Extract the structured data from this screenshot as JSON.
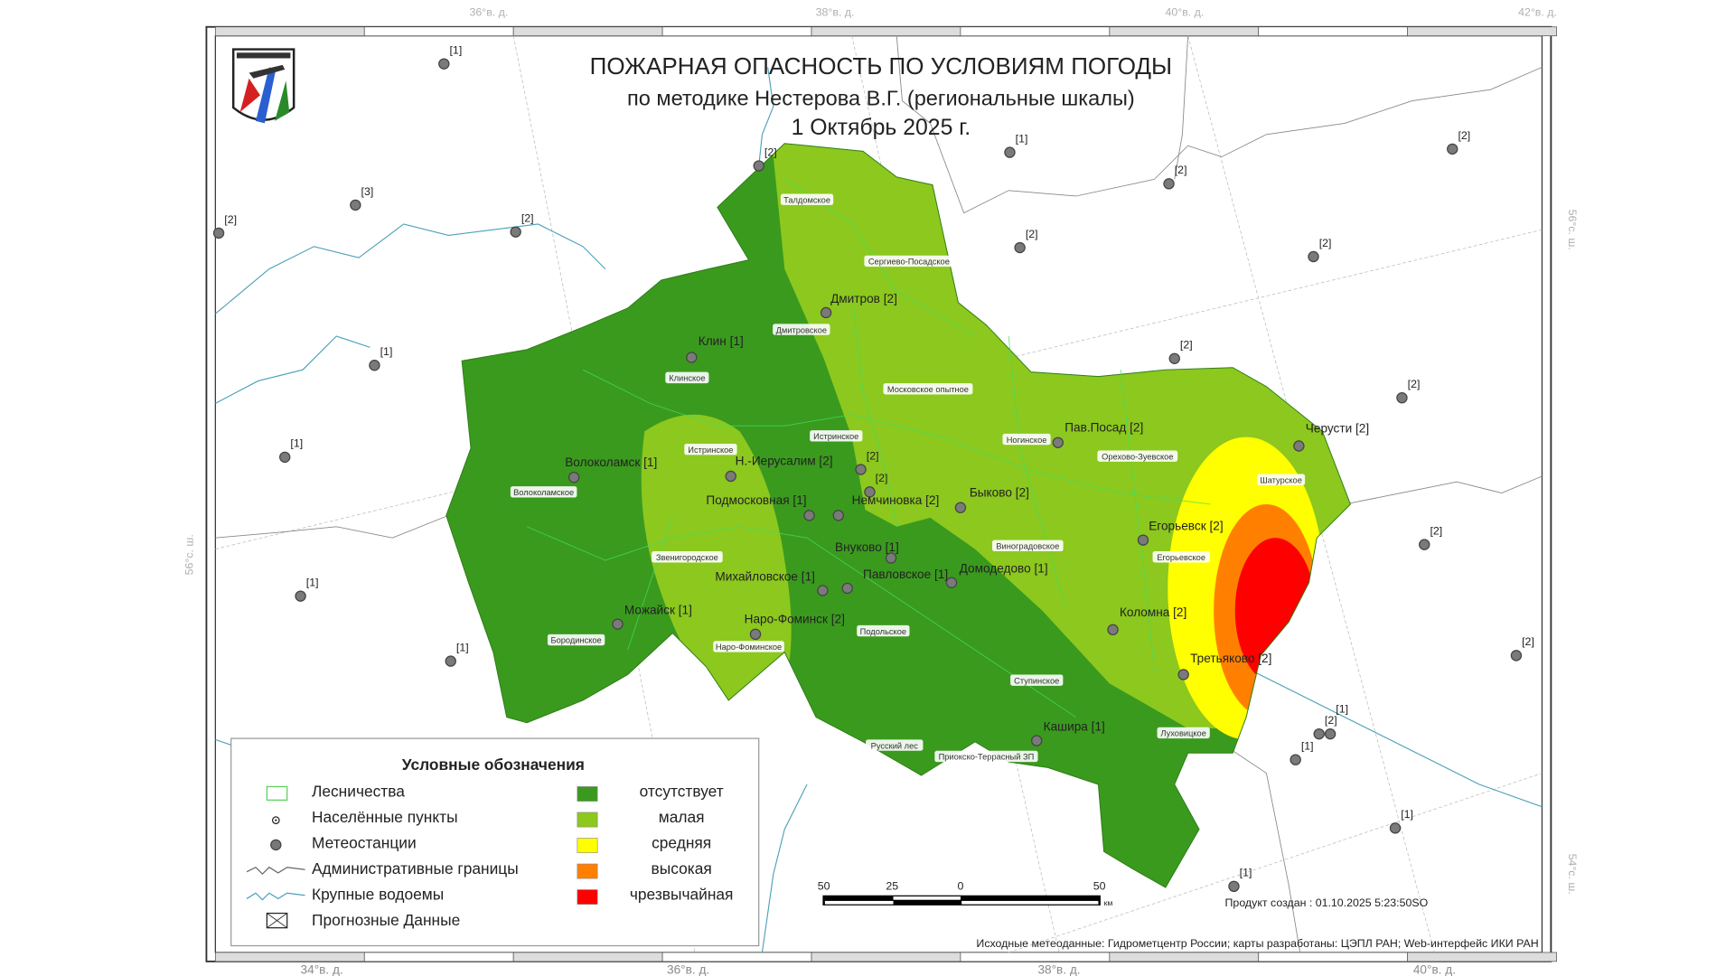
{
  "header": {
    "title_line1": "ПОЖАРНАЯ ОПАСНОСТЬ ПО УСЛОВИЯМ ПОГОДЫ",
    "title_line2": "по методике Нестерова В.Г. (региональные шкалы)",
    "date": "1 Октябрь 2025 г."
  },
  "graticule": {
    "top": [
      "36°в. д.",
      "38°в. д.",
      "40°в. д.",
      "42°в. д."
    ],
    "bottom": [
      "34°в. д.",
      "36°в. д.",
      "38°в. д.",
      "40°в. д."
    ],
    "right": [
      "56°с. ш.",
      "54°с. ш."
    ],
    "left": [
      "56°с. ш."
    ]
  },
  "stations_named": [
    {
      "name": "Дмитров",
      "class": "[2]"
    },
    {
      "name": "Клин",
      "class": "[1]"
    },
    {
      "name": "Волоколамск",
      "class": "[1]"
    },
    {
      "name": "Н.-Иерусалим",
      "class": "[2]"
    },
    {
      "name": "Подмосковная",
      "class": "[1]"
    },
    {
      "name": "Немчиновка",
      "class": "[2]"
    },
    {
      "name": "Быково",
      "class": "[2]"
    },
    {
      "name": "Пав.Посад",
      "class": "[2]"
    },
    {
      "name": "Черусти",
      "class": "[2]"
    },
    {
      "name": "Егорьевск",
      "class": "[2]"
    },
    {
      "name": "Внуково",
      "class": "[1]"
    },
    {
      "name": "Михайловское",
      "class": "[1]"
    },
    {
      "name": "Павловское",
      "class": "[1]"
    },
    {
      "name": "Домодедово",
      "class": "[1]"
    },
    {
      "name": "Можайск",
      "class": "[1]"
    },
    {
      "name": "Наро-Фоминск",
      "class": "[2]"
    },
    {
      "name": "Коломна",
      "class": "[2]"
    },
    {
      "name": "Третьяково",
      "class": "[2]"
    },
    {
      "name": "Кашира",
      "class": "[1]"
    }
  ],
  "stations_unnamed": [
    "[1]",
    "[2]",
    "[3]",
    "[2]",
    "[2]",
    "[1]",
    "[2]",
    "[2]",
    "[2]",
    "[2]",
    "[1]",
    "[2]",
    "[2]",
    "[1]",
    "[1]",
    "[1]",
    "[2]",
    "[2]",
    "[2]",
    "[1]",
    "[1]",
    "[1]",
    "[1]",
    "[2]",
    "[2]"
  ],
  "forestries": [
    "Талдомское",
    "Сергиево-Посадское",
    "Дмитровское",
    "Клинское",
    "Московское опытное",
    "Истринское",
    "Ногинское",
    "Орехово-Зуевское",
    "Истринское",
    "Шатурское",
    "Волоколамское",
    "Виноградовское",
    "Звенигородское",
    "Егорьевское",
    "Подольское",
    "Бородинское",
    "Наро-Фоминское",
    "Ступинское",
    "Луховицкое",
    "Русский лес",
    "Приокско-Террасный ЗП"
  ],
  "legend": {
    "title": "Условные обозначения",
    "symbols": [
      "Лесничества",
      "Населённые пункты",
      "Метеостанции",
      "Административные границы",
      "Крупные водоемы",
      "Прогнозные Данные"
    ],
    "classes": [
      {
        "label": "отсутствует",
        "color": "#3a9a1e"
      },
      {
        "label": "малая",
        "color": "#8cc81e"
      },
      {
        "label": "средняя",
        "color": "#ffff00"
      },
      {
        "label": "высокая",
        "color": "#ff8000"
      },
      {
        "label": "чрезвычайная",
        "color": "#ff0000"
      }
    ]
  },
  "scale_bar": {
    "ticks": [
      "50",
      "25",
      "0",
      "50"
    ],
    "unit": "км"
  },
  "footer": {
    "created": "Продукт создан : 01.10.2025 5:23:50SO",
    "source": "Исходные метеоданные: Гидрометцентр России; карты разработаны: ЦЭПЛ РАН; Web-интерфейс ИКИ РАН"
  }
}
